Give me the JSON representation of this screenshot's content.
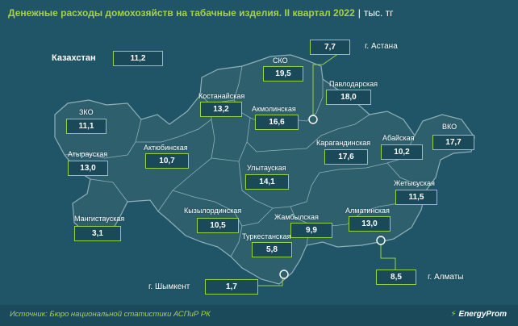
{
  "header": {
    "title": "Денежные расходы домохозяйств на табачные изделия. II квартал 2022",
    "separator": "|",
    "unit": "тыс. тг"
  },
  "total": {
    "label": "Казахстан",
    "value": "11,2"
  },
  "regions": [
    {
      "key": "zko",
      "name": "ЗКО",
      "value": "11,1"
    },
    {
      "key": "atyrau",
      "name": "Атырауская",
      "value": "13,0"
    },
    {
      "key": "mangistau",
      "name": "Мангистауская",
      "value": "3,1"
    },
    {
      "key": "aktobe",
      "name": "Актюбинская",
      "value": "10,7"
    },
    {
      "key": "kostanay",
      "name": "Костанайская",
      "value": "13,2"
    },
    {
      "key": "sko",
      "name": "СКО",
      "value": "19,5"
    },
    {
      "key": "akmola",
      "name": "Акмолинская",
      "value": "16,6"
    },
    {
      "key": "pavlodar",
      "name": "Павлодарская",
      "value": "18,0"
    },
    {
      "key": "vko",
      "name": "ВКО",
      "value": "17,7"
    },
    {
      "key": "abay",
      "name": "Абайская",
      "value": "10,2"
    },
    {
      "key": "karaganda",
      "name": "Карагандинская",
      "value": "17,6"
    },
    {
      "key": "ulytau",
      "name": "Улытауская",
      "value": "14,1"
    },
    {
      "key": "kyzylorda",
      "name": "Кызылординская",
      "value": "10,5"
    },
    {
      "key": "zhetysu",
      "name": "Жетысуская",
      "value": "11,5"
    },
    {
      "key": "zhambyl",
      "name": "Жамбылская",
      "value": "9,9"
    },
    {
      "key": "almaty_reg",
      "name": "Алматинская",
      "value": "13,0"
    },
    {
      "key": "turkestan",
      "name": "Туркестанская",
      "value": "5,8"
    }
  ],
  "cities": [
    {
      "key": "astana",
      "name": "г. Астана",
      "value": "7,7"
    },
    {
      "key": "almaty",
      "name": "г. Алматы",
      "value": "8,5"
    },
    {
      "key": "shymkent",
      "name": "г. Шымкент",
      "value": "1,7"
    }
  ],
  "footer": {
    "source": "Источник: Бюро национальной статистики АСПиР РК",
    "brand": "EnergyProm",
    "brand_icon": "lightning-bolt-icon"
  },
  "colors": {
    "background": "#1f5566",
    "map_fill": "#2e5f6d",
    "map_border": "#8fb0b8",
    "value_box_border": "#9bd143",
    "title": "#a8d14a"
  }
}
